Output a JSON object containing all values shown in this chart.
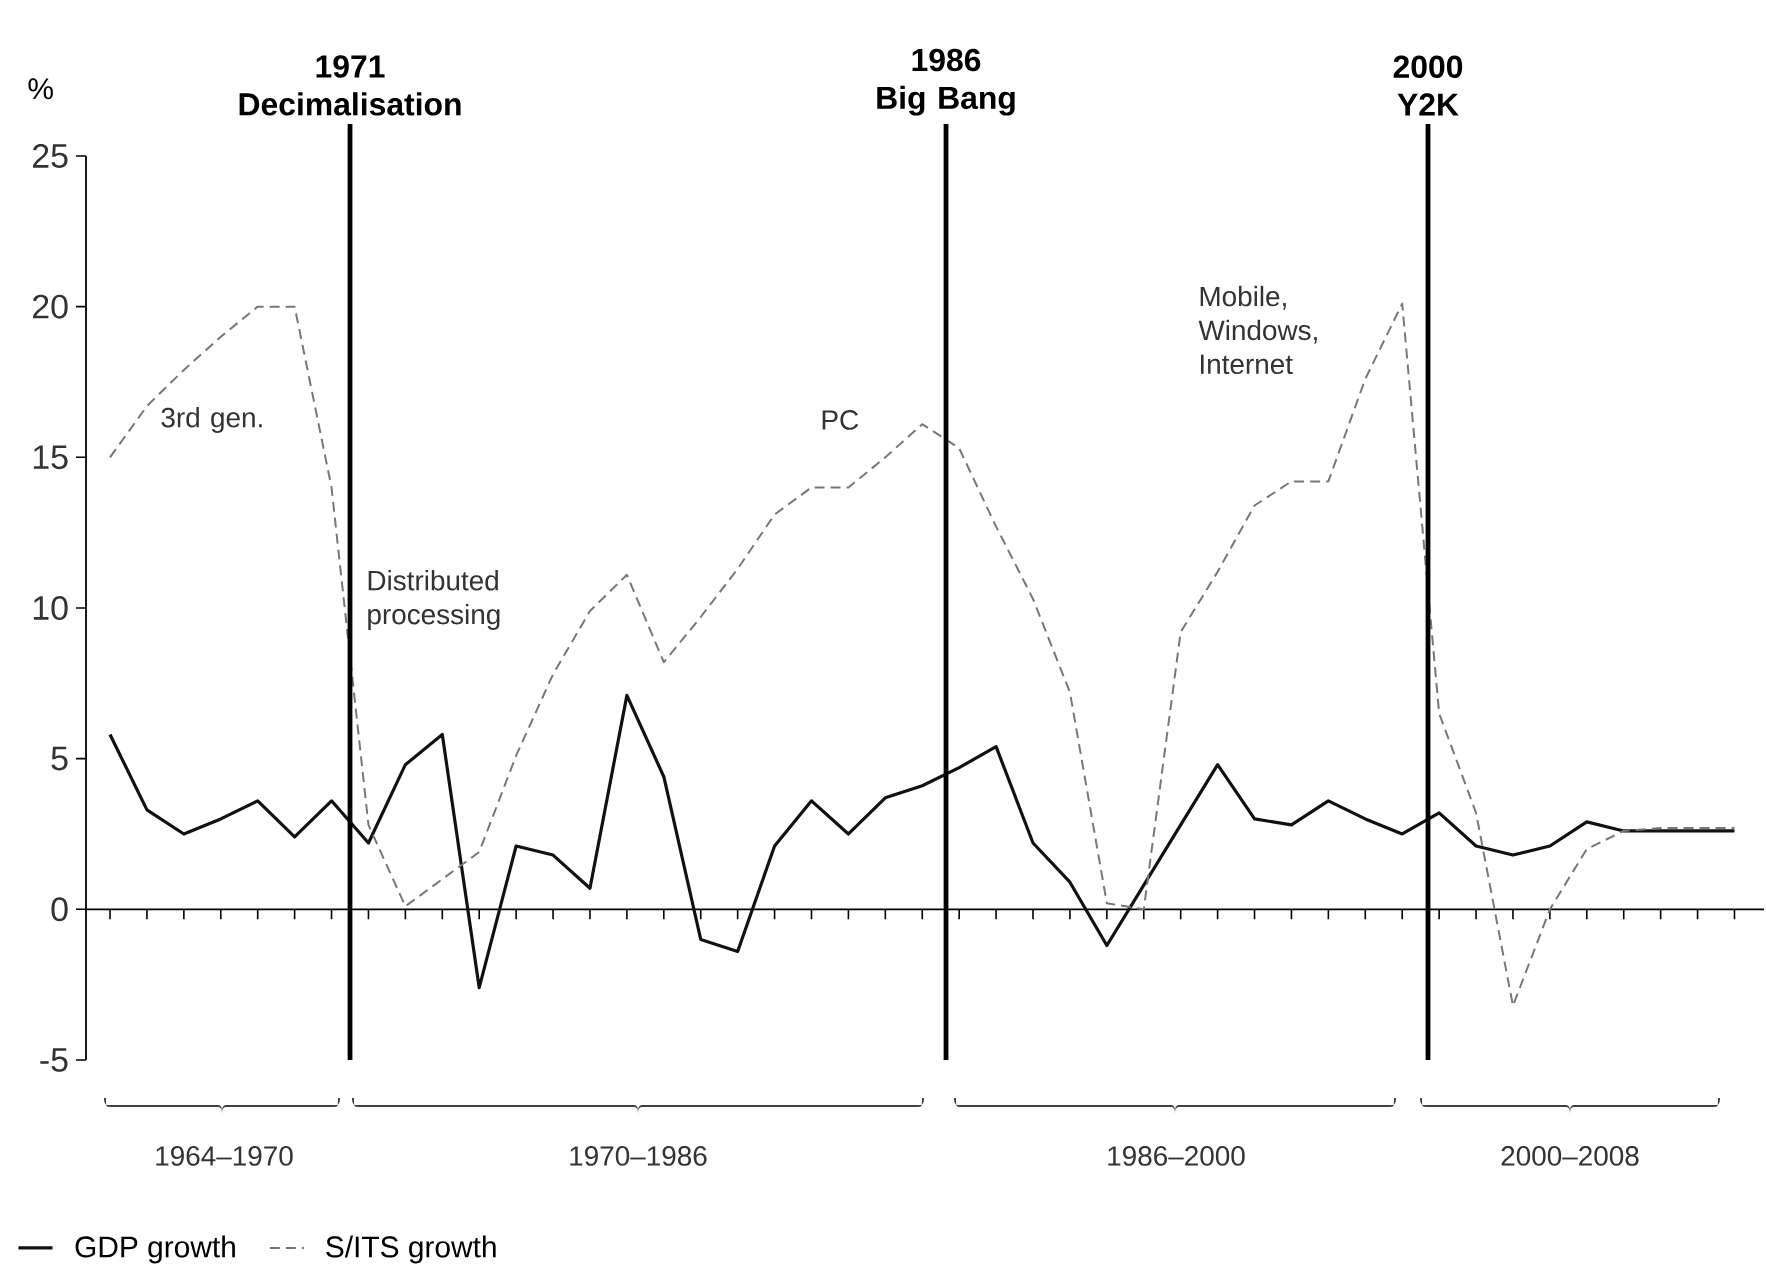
{
  "chart_data": {
    "type": "line",
    "ylabel": "%",
    "categories": [
      null,
      null,
      null,
      null,
      null,
      null,
      null,
      null,
      null,
      null,
      null,
      null,
      null,
      null,
      null,
      null,
      null,
      null,
      null,
      null,
      null,
      null,
      null,
      null,
      null,
      null,
      null,
      null,
      null,
      null,
      null,
      null,
      null,
      null,
      null,
      null,
      null,
      null,
      null,
      null,
      null,
      null,
      null,
      null,
      null
    ],
    "series": [
      {
        "name": "GDP growth",
        "color": "#111111",
        "line_style": "solid",
        "values": [
          5.8,
          3.3,
          2.5,
          3.0,
          3.6,
          2.4,
          3.6,
          2.2,
          4.8,
          5.8,
          -2.6,
          2.1,
          1.8,
          0.7,
          7.1,
          4.4,
          -1.0,
          -1.4,
          2.1,
          3.6,
          2.5,
          3.7,
          4.1,
          4.7,
          5.4,
          2.2,
          0.9,
          -1.2,
          0.8,
          2.8,
          4.8,
          3.0,
          2.8,
          3.6,
          3.0,
          2.5,
          3.2,
          2.1,
          1.8,
          2.1,
          2.9,
          2.6,
          2.6,
          2.6,
          2.6
        ]
      },
      {
        "name": "S/ITS growth",
        "color": "#777777",
        "line_style": "dashed",
        "values": [
          15.0,
          16.7,
          17.9,
          19.0,
          20.0,
          20.0,
          14.0,
          2.8,
          0.1,
          1.0,
          1.9,
          5.1,
          7.8,
          9.9,
          11.1,
          8.2,
          9.7,
          11.3,
          13.1,
          14.0,
          14.0,
          15.0,
          16.1,
          15.3,
          12.7,
          10.3,
          7.2,
          0.2,
          0.0,
          9.2,
          11.2,
          13.4,
          14.2,
          14.2,
          17.6,
          20.1,
          6.5,
          3.2,
          -3.2,
          0.0,
          2.0,
          2.6,
          2.7,
          2.7,
          2.7
        ]
      }
    ],
    "ylim": [
      -5,
      25
    ],
    "yticks": [
      -5,
      0,
      5,
      10,
      15,
      20,
      25
    ],
    "annotations": [
      "3rd gen.",
      "Distributed processing",
      "PC",
      "Mobile, Windows, Internet",
      "1964–1970",
      "1970–1986",
      "1986–2000",
      "2000–2008",
      "1971 Decimalisation",
      "1986 Big Bang",
      "2000 Y2K"
    ],
    "legend": "bottom left"
  }
}
